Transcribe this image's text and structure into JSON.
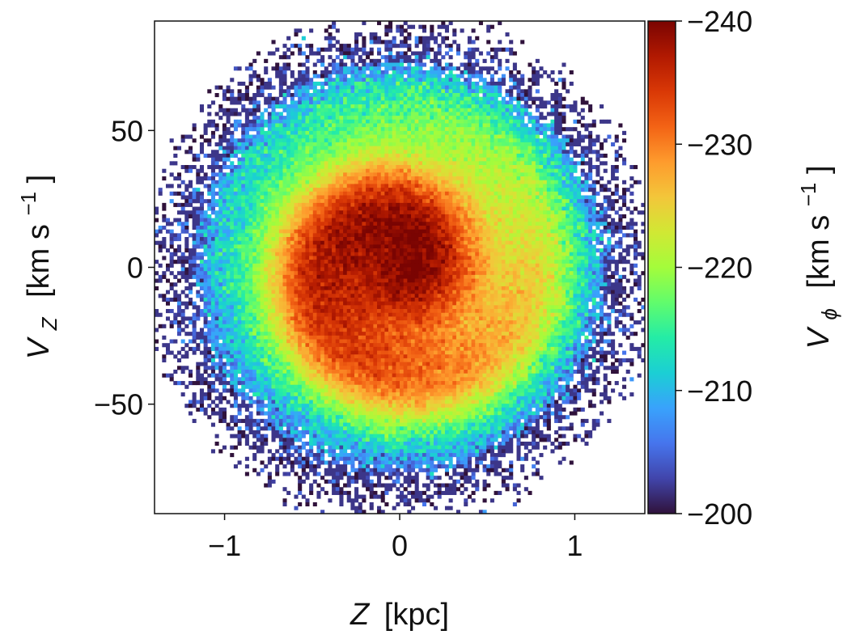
{
  "chart_data": {
    "type": "heatmap",
    "title": "",
    "xlabel": {
      "symbol": "Z",
      "unit": "[kpc]"
    },
    "ylabel": {
      "symbol": "V",
      "subscript": "Z",
      "unit": "[km s",
      "unit_exp": "−1",
      "unit_close": "]"
    },
    "xlim": [
      -1.4,
      1.4
    ],
    "ylim": [
      -90,
      90
    ],
    "x_ticks": [
      {
        "value": -1,
        "label": "−1"
      },
      {
        "value": 0,
        "label": "0"
      },
      {
        "value": 1,
        "label": "1"
      }
    ],
    "y_ticks": [
      {
        "value": 50,
        "label": "50"
      },
      {
        "value": 0,
        "label": "0"
      },
      {
        "value": -50,
        "label": "−50"
      }
    ],
    "colorbar": {
      "label": {
        "symbol": "V",
        "subscript": "ϕ",
        "unit": "[km s",
        "unit_exp": "−1",
        "unit_close": "]"
      },
      "range": [
        -240,
        -200
      ],
      "ticks": [
        {
          "value": -240,
          "label": "−240"
        },
        {
          "value": -230,
          "label": "−230"
        },
        {
          "value": -220,
          "label": "−220"
        },
        {
          "value": -210,
          "label": "−210"
        },
        {
          "value": -200,
          "label": "−200"
        }
      ],
      "colormap": "turbo-like",
      "stops": [
        "#30123b",
        "#4145ab",
        "#4675ed",
        "#39a2fc",
        "#1bcfd4",
        "#24eca6",
        "#61fc6c",
        "#a4fc3b",
        "#d1e834",
        "#f3c63a",
        "#fe9b2d",
        "#f36315",
        "#d93806",
        "#b11901",
        "#7a0402"
      ]
    },
    "model": {
      "description": "V_phi map in Z–V_Z plane showing a phase spiral",
      "center_value": -236,
      "edge_value": -200,
      "core_value": -234,
      "ring_value": -232,
      "data_radius_norm": 1.0
    }
  }
}
